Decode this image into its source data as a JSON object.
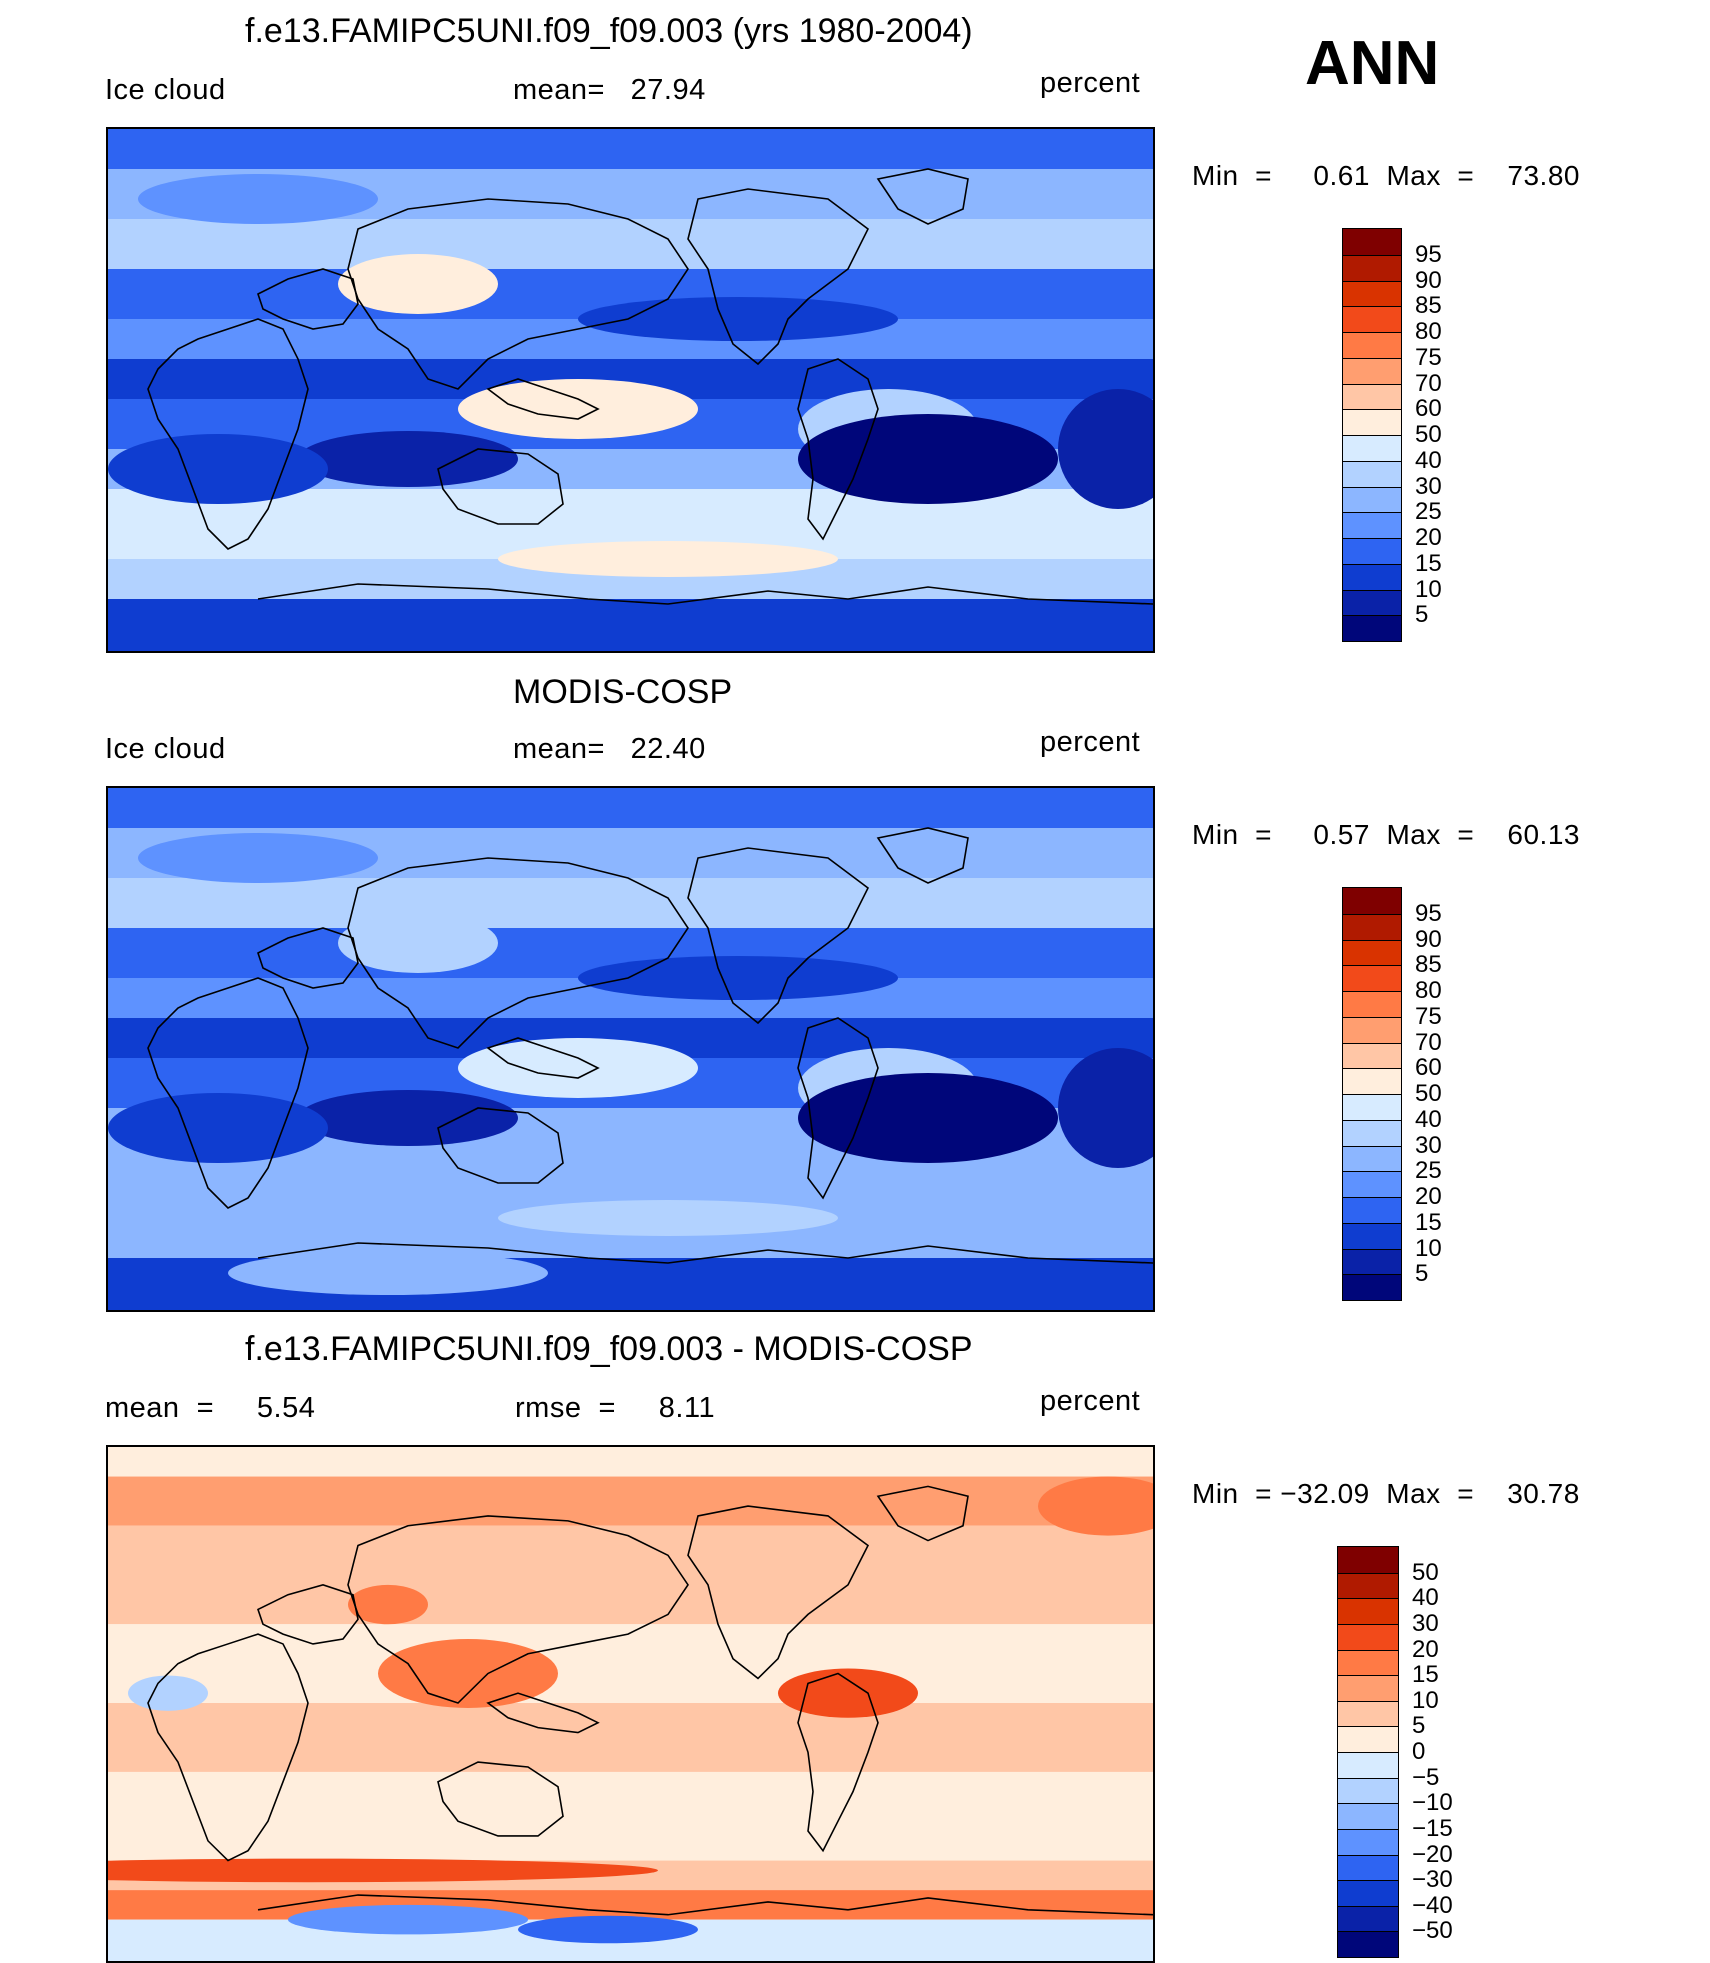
{
  "season": "ANN",
  "panels": [
    {
      "id": "model",
      "title": "f.e13.FAMIPC5UNI.f09_f09.003 (yrs 1980-2004)",
      "left_label": "Ice cloud",
      "center_label": "mean=   27.94",
      "units": "percent",
      "minmax": "Min  =     0.61  Max  =    73.80",
      "cmap": "seq"
    },
    {
      "id": "obs",
      "title": "MODIS-COSP",
      "left_label": "Ice cloud",
      "center_label": "mean=   22.40",
      "units": "percent",
      "minmax": "Min  =     0.57  Max  =    60.13",
      "cmap": "seq"
    },
    {
      "id": "diff",
      "title": "f.e13.FAMIPC5UNI.f09_f09.003 - MODIS-COSP",
      "left_label": "mean  =     5.54",
      "center_label": "rmse  =     8.11",
      "units": "percent",
      "minmax": "Min  = −32.09  Max  =    30.78",
      "cmap": "div"
    }
  ],
  "chart_data": [
    {
      "type": "heatmap",
      "title": "f.e13.FAMIPC5UNI.f09_f09.003 (yrs 1980-2004)",
      "variable": "Ice cloud",
      "units": "percent",
      "mean": 27.94,
      "min": 0.61,
      "max": 73.8,
      "colorbar_levels": [
        95,
        90,
        85,
        80,
        75,
        70,
        60,
        50,
        40,
        30,
        25,
        20,
        15,
        10,
        5
      ],
      "colors": [
        "#7f0000",
        "#b01a00",
        "#d93300",
        "#f24a1a",
        "#ff7a45",
        "#ff9e70",
        "#ffc6a6",
        "#ffeedd",
        "#d7ebff",
        "#b2d2ff",
        "#8cb6ff",
        "#5e92ff",
        "#2e64f2",
        "#0f3dd0",
        "#0a22a8",
        "#00067a"
      ]
    },
    {
      "type": "heatmap",
      "title": "MODIS-COSP",
      "variable": "Ice cloud",
      "units": "percent",
      "mean": 22.4,
      "min": 0.57,
      "max": 60.13,
      "colorbar_levels": [
        95,
        90,
        85,
        80,
        75,
        70,
        60,
        50,
        40,
        30,
        25,
        20,
        15,
        10,
        5
      ],
      "colors": [
        "#7f0000",
        "#b01a00",
        "#d93300",
        "#f24a1a",
        "#ff7a45",
        "#ff9e70",
        "#ffc6a6",
        "#ffeedd",
        "#d7ebff",
        "#b2d2ff",
        "#8cb6ff",
        "#5e92ff",
        "#2e64f2",
        "#0f3dd0",
        "#0a22a8",
        "#00067a"
      ]
    },
    {
      "type": "heatmap",
      "title": "f.e13.FAMIPC5UNI.f09_f09.003 - MODIS-COSP",
      "units": "percent",
      "mean": 5.54,
      "rmse": 8.11,
      "min": -32.09,
      "max": 30.78,
      "colorbar_levels": [
        "50",
        "40",
        "30",
        "20",
        "15",
        "10",
        "5",
        "0",
        "−5",
        "−10",
        "−15",
        "−20",
        "−30",
        "−40",
        "−50"
      ],
      "colors": [
        "#7f0000",
        "#b01a00",
        "#d93300",
        "#f24a1a",
        "#ff7a45",
        "#ff9e70",
        "#ffc6a6",
        "#ffeedd",
        "#d7ebff",
        "#b2d2ff",
        "#8cb6ff",
        "#5e92ff",
        "#2e64f2",
        "#0f3dd0",
        "#0a22a8",
        "#00067a"
      ]
    }
  ]
}
